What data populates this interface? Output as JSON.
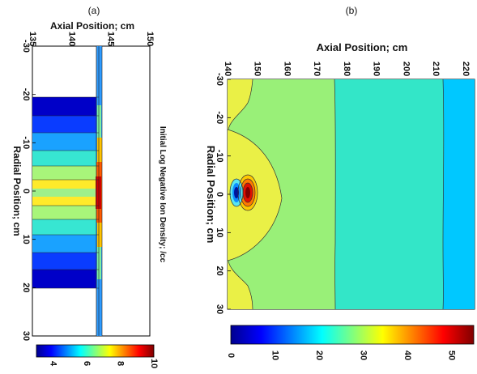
{
  "chart_data": [
    {
      "panel_label": "(a)",
      "type": "heatmap",
      "title": "Initial Log Negative Ion Density; /cc",
      "xlabel": "Axial Position; cm",
      "ylabel": "Radial Position; cm",
      "x_ticks": [
        "135",
        "140",
        "145",
        "150"
      ],
      "y_ticks": [
        "-30",
        "-20",
        "-10",
        "0",
        "10",
        "20",
        "30"
      ],
      "xlim": [
        135,
        150
      ],
      "ylim": [
        -30,
        30
      ],
      "colorbar": {
        "ticks": [
          "4",
          "6",
          "8",
          "10"
        ],
        "range": [
          3,
          10
        ]
      },
      "description_values": {
        "front_axial_position": 143,
        "peak_log_density": 10,
        "background_log_density": 3
      }
    },
    {
      "panel_label": "(b)",
      "type": "heatmap",
      "xlabel": "Axial Position; cm",
      "ylabel": "Radial Position; cm",
      "x_ticks": [
        "140",
        "150",
        "160",
        "170",
        "180",
        "190",
        "200",
        "210",
        "220"
      ],
      "y_ticks": [
        "-30",
        "-20",
        "-10",
        "0",
        "10",
        "20",
        "30"
      ],
      "xlim": [
        140,
        223
      ],
      "ylim": [
        -30,
        30
      ],
      "colorbar": {
        "ticks": [
          "0",
          "10",
          "20",
          "30",
          "40",
          "50"
        ],
        "range": [
          0,
          55
        ]
      },
      "bands": [
        {
          "from": 140,
          "to": 174,
          "level": 33
        },
        {
          "from": 174,
          "to": 210,
          "level": 24
        },
        {
          "from": 210,
          "to": 223,
          "level": 18
        }
      ],
      "hot_spot": {
        "axial": 142,
        "radial": 0,
        "max": 52,
        "min": 2
      }
    }
  ]
}
